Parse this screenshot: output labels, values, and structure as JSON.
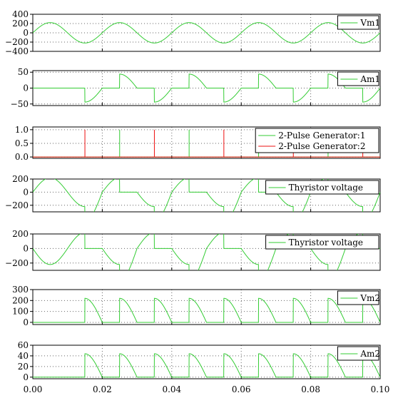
{
  "colors": {
    "green": "#33cc33",
    "red": "#ee1111"
  },
  "x_ticks": [
    "0.00",
    "0.02",
    "0.04",
    "0.06",
    "0.08",
    "0.10"
  ],
  "chart_data": [
    {
      "type": "line",
      "xlim": [
        0,
        0.1
      ],
      "ylim": [
        -400,
        400
      ],
      "yticks": [
        400,
        200,
        0,
        -200,
        -400
      ],
      "ytick_labels": [
        "400",
        "200",
        "0",
        "−200",
        "−400"
      ],
      "legend_placement": "top-right",
      "series": [
        {
          "name": "Vm1",
          "color": "#33cc33",
          "signal": "source_voltage",
          "amplitude": 220,
          "frequency_hz": 50
        }
      ]
    },
    {
      "type": "line",
      "xlim": [
        0,
        0.1
      ],
      "ylim": [
        -55,
        55
      ],
      "yticks": [
        50,
        0,
        -50
      ],
      "ytick_labels": [
        "50",
        "0",
        "−50"
      ],
      "legend_placement": "top-right",
      "series": [
        {
          "name": "Am1",
          "color": "#33cc33",
          "signal": "source_current",
          "amplitude": 44,
          "firing_angle_deg": 90
        }
      ]
    },
    {
      "type": "line",
      "xlim": [
        0,
        0.1
      ],
      "ylim": [
        -0.05,
        1.1
      ],
      "yticks": [
        1.0,
        0.5,
        0.0
      ],
      "ytick_labels": [
        "1.0",
        "0.5",
        "0.0"
      ],
      "legend_placement": "top-right",
      "series": [
        {
          "name": "2-Pulse Generator:1",
          "color": "#33cc33",
          "signal": "pulse_train",
          "pulse_times": [
            0.025,
            0.045,
            0.065,
            0.085
          ]
        },
        {
          "name": "2-Pulse Generator:2",
          "color": "#ee1111",
          "signal": "pulse_train",
          "pulse_times": [
            0.015,
            0.035,
            0.055,
            0.075,
            0.095
          ]
        }
      ]
    },
    {
      "type": "line",
      "xlim": [
        0,
        0.1
      ],
      "ylim": [
        -300,
        200
      ],
      "yticks": [
        200,
        0,
        -200
      ],
      "ytick_labels": [
        "200",
        "0",
        "−200"
      ],
      "legend_placement": "top-right",
      "series": [
        {
          "name": "Thyristor voltage",
          "color": "#33cc33",
          "signal": "thyristor_voltage_a",
          "amplitude": 220,
          "firing_angle_deg": 90
        }
      ]
    },
    {
      "type": "line",
      "xlim": [
        0,
        0.1
      ],
      "ylim": [
        -300,
        200
      ],
      "yticks": [
        200,
        0,
        -200
      ],
      "ytick_labels": [
        "200",
        "0",
        "−200"
      ],
      "legend_placement": "top-right",
      "series": [
        {
          "name": "Thyristor voltage",
          "color": "#33cc33",
          "signal": "thyristor_voltage_b",
          "amplitude": 220,
          "firing_angle_deg": 90
        }
      ]
    },
    {
      "type": "line",
      "xlim": [
        0,
        0.1
      ],
      "ylim": [
        -20,
        300
      ],
      "yticks": [
        300,
        200,
        100,
        0
      ],
      "ytick_labels": [
        "300",
        "200",
        "100",
        "0"
      ],
      "legend_placement": "top-right",
      "series": [
        {
          "name": "Vm2",
          "color": "#33cc33",
          "signal": "load_voltage",
          "amplitude": 220,
          "firing_angle_deg": 90
        }
      ]
    },
    {
      "type": "line",
      "xlim": [
        0,
        0.1
      ],
      "ylim": [
        -3,
        60
      ],
      "yticks": [
        60,
        40,
        20,
        0
      ],
      "ytick_labels": [
        "60",
        "40",
        "20",
        "0"
      ],
      "legend_placement": "top-right",
      "series": [
        {
          "name": "Am2",
          "color": "#33cc33",
          "signal": "load_current",
          "amplitude": 44,
          "firing_angle_deg": 90
        }
      ]
    }
  ]
}
